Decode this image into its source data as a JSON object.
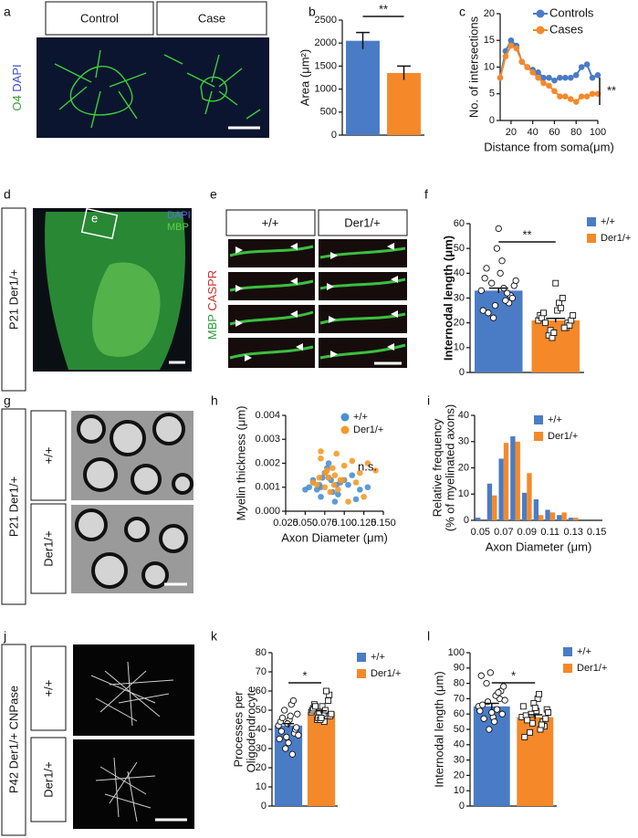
{
  "figure_panels": [
    {
      "letter": "a",
      "headers": [
        "Control",
        "Case"
      ],
      "stain": [
        "O4",
        "DAPI"
      ]
    },
    {
      "letter": "d",
      "side": "P21 Der1/+",
      "stain": [
        "DAPI",
        "MBP"
      ],
      "inset": "e"
    },
    {
      "letter": "e",
      "headers": [
        "+/+",
        "Der1/+"
      ],
      "stain": [
        "MBP",
        "CASPR"
      ]
    },
    {
      "letter": "g",
      "side": "P21 Der1/+",
      "headers": [
        "+/+",
        "Der1/+"
      ]
    },
    {
      "letter": "j",
      "side": "P42 Der1/+ CNPase",
      "headers": [
        "+/+",
        "Der1/+"
      ]
    }
  ],
  "chart_data": [
    {
      "panel": "b",
      "type": "bar",
      "categories": [
        null,
        null
      ],
      "values": [
        2050,
        1350
      ],
      "errors": [
        180,
        150
      ],
      "colors": [
        "#4a7cc6",
        "#f5892a"
      ],
      "ylabel": "Area (μm²)",
      "ylim": [
        0,
        2500
      ],
      "yticks": [
        0,
        500,
        1000,
        1500,
        2000,
        2500
      ],
      "annotation": "**"
    },
    {
      "panel": "c",
      "type": "line",
      "x": [
        10,
        15,
        20,
        25,
        30,
        35,
        40,
        45,
        50,
        55,
        60,
        65,
        70,
        75,
        80,
        85,
        90,
        95,
        100
      ],
      "series": [
        {
          "name": "Controls",
          "color": "#4a7cc6",
          "values": [
            8,
            13,
            15,
            14,
            11,
            10,
            9.5,
            9,
            8,
            8,
            7.5,
            8,
            8,
            8,
            8.5,
            10,
            10.5,
            8,
            8.5
          ]
        },
        {
          "name": "Cases",
          "color": "#f5892a",
          "values": [
            8,
            12,
            14,
            13.5,
            11,
            10,
            9,
            8,
            7,
            6.5,
            5.5,
            4.5,
            4.5,
            4,
            3.5,
            4.5,
            4.5,
            5,
            5
          ]
        }
      ],
      "xlabel": "Distance from soma(μm)",
      "ylabel": "No. of intersections",
      "xlim": [
        10,
        100
      ],
      "xticks": [
        20,
        40,
        60,
        80,
        100
      ],
      "ylim": [
        0,
        20
      ],
      "yticks": [
        0,
        5,
        10,
        15,
        20
      ],
      "legend": "top-right",
      "annotation": "**"
    },
    {
      "panel": "f",
      "type": "bar",
      "categories": [
        "+/+",
        "Der1/+"
      ],
      "values": [
        33,
        21
      ],
      "errors": [
        1,
        0.8
      ],
      "points": [
        [
          33,
          28,
          40,
          36,
          25,
          31,
          45,
          22,
          38,
          30,
          34,
          27,
          42,
          35,
          29,
          50,
          24,
          37,
          32,
          58
        ],
        [
          21,
          18,
          25,
          15,
          23,
          20,
          28,
          17,
          22,
          19,
          26,
          14,
          24,
          21,
          30,
          16,
          20,
          23,
          18,
          36
        ]
      ],
      "point_markers": [
        "circle",
        "square"
      ],
      "colors": [
        "#4a7cc6",
        "#f5892a"
      ],
      "ylabel": "Internodal length (μm)",
      "ylim": [
        0,
        60
      ],
      "yticks": [
        0,
        10,
        20,
        30,
        40,
        50,
        60
      ],
      "annotation": "**",
      "legend": "top-right"
    },
    {
      "panel": "h",
      "type": "scatter",
      "series": [
        {
          "name": "+/+",
          "color": "#4a90d0",
          "x": [
            0.06,
            0.07,
            0.08,
            0.065,
            0.09,
            0.075,
            0.1,
            0.085,
            0.055,
            0.11,
            0.07,
            0.095,
            0.08,
            0.12,
            0.06,
            0.088,
            0.105,
            0.072,
            0.13,
            0.078,
            0.092,
            0.068,
            0.115,
            0.083,
            0.05
          ],
          "values": [
            0.0012,
            0.001,
            0.0014,
            0.0009,
            0.0011,
            0.0016,
            0.0013,
            0.0008,
            0.001,
            0.0015,
            0.0006,
            0.0012,
            0.002,
            0.0009,
            0.0013,
            0.0004,
            0.0011,
            0.0014,
            0.001,
            0.0018,
            0.0007,
            0.0011,
            0.0005,
            0.0013,
            0.0009
          ]
        },
        {
          "name": "Der1/+",
          "color": "#f59a2a",
          "x": [
            0.07,
            0.085,
            0.095,
            0.065,
            0.1,
            0.08,
            0.11,
            0.075,
            0.09,
            0.12,
            0.06,
            0.105,
            0.088,
            0.13,
            0.078,
            0.092,
            0.115,
            0.07,
            0.082,
            0.098,
            0.14,
            0.068,
            0.087,
            0.125,
            0.076
          ],
          "values": [
            0.0025,
            0.0018,
            0.0013,
            0.0011,
            0.0019,
            0.0014,
            0.0021,
            0.001,
            0.0024,
            0.0016,
            0.0012,
            0.0004,
            0.0015,
            0.002,
            0.0017,
            0.0009,
            0.0012,
            0.0022,
            0.0008,
            0.0013,
            0.0017,
            0.0014,
            0.0011,
            0.0006,
            0.0016
          ]
        }
      ],
      "xlabel": "Axon Diameter (μm)",
      "ylabel": "Myelin thickness (μm)",
      "xlim": [
        0.025,
        0.15
      ],
      "xticks": [
        {
          "value": 0.025,
          "label": "0.025"
        },
        {
          "value": 0.05,
          "label": "0.050"
        },
        {
          "value": 0.075,
          "label": "0.075"
        },
        {
          "value": 0.1,
          "label": "0.100"
        },
        {
          "value": 0.125,
          "label": "0.125"
        },
        {
          "value": 0.15,
          "label": "0.150"
        }
      ],
      "ylim": [
        0,
        0.004
      ],
      "yticks": [
        {
          "value": 0,
          "label": "0.000"
        },
        {
          "value": 0.001,
          "label": "0.001"
        },
        {
          "value": 0.002,
          "label": "0.002"
        },
        {
          "value": 0.003,
          "label": "0.003"
        },
        {
          "value": 0.004,
          "label": "0.004"
        }
      ],
      "annotation": "n.s.",
      "legend": "top-right"
    },
    {
      "panel": "i",
      "type": "bar",
      "categories": [
        "0.05",
        null,
        "0.07",
        null,
        "0.09",
        null,
        "0.11",
        null,
        "0.13",
        null,
        "0.15"
      ],
      "series": [
        {
          "name": "+/+",
          "color": "#4a7cc6",
          "values": [
            1,
            14,
            23.5,
            32,
            10.5,
            8,
            4,
            2,
            1,
            0,
            0
          ]
        },
        {
          "name": "Der1/+",
          "color": "#f5892a",
          "values": [
            0,
            9.5,
            29.5,
            30,
            18,
            2,
            3,
            3,
            1,
            0,
            0
          ]
        }
      ],
      "xlabel": "Axon Diameter (μm)",
      "ylabel": [
        "Relative frequency",
        "(% of myelinated axons)"
      ],
      "ylim": [
        0,
        40
      ],
      "yticks": [
        0,
        10,
        20,
        30,
        40
      ],
      "legend": "top-right"
    },
    {
      "panel": "k",
      "type": "bar",
      "categories": [
        "+/+",
        "Der1/+"
      ],
      "values": [
        42,
        49
      ],
      "errors": [
        1,
        0.7
      ],
      "points": [
        [
          42,
          38,
          45,
          50,
          35,
          40,
          47,
          30,
          44,
          41,
          53,
          36,
          39,
          48,
          27,
          43,
          46,
          37,
          55,
          33
        ],
        [
          49,
          47,
          52,
          45,
          50,
          55,
          48,
          46,
          51,
          58,
          44,
          49,
          53,
          47,
          50,
          45,
          52,
          48,
          60,
          46
        ]
      ],
      "point_markers": [
        "circle",
        "square"
      ],
      "colors": [
        "#4a7cc6",
        "#f5892a"
      ],
      "ylabel": [
        "Processes per",
        "Oligodendrocyte"
      ],
      "ylim": [
        0,
        80
      ],
      "yticks": [
        0,
        10,
        20,
        30,
        40,
        50,
        60,
        70,
        80
      ],
      "annotation": "*",
      "legend": "top-right"
    },
    {
      "panel": "l",
      "type": "bar",
      "categories": [
        "+/+",
        "Der1/+"
      ],
      "values": [
        65,
        58
      ],
      "errors": [
        2,
        1.5
      ],
      "points": [
        [
          65,
          70,
          58,
          80,
          62,
          75,
          55,
          68,
          85,
          60,
          72,
          50,
          66,
          78,
          63,
          87,
          57,
          69,
          74,
          61
        ],
        [
          58,
          55,
          62,
          48,
          65,
          52,
          70,
          60,
          45,
          57,
          73,
          54,
          59,
          63,
          50,
          67,
          56,
          61,
          53,
          64
        ]
      ],
      "point_markers": [
        "circle",
        "square"
      ],
      "colors": [
        "#4a7cc6",
        "#f5892a"
      ],
      "ylabel": "Internodal length (μm)",
      "ylim": [
        0,
        100
      ],
      "yticks": [
        0,
        10,
        20,
        30,
        40,
        50,
        60,
        70,
        80,
        90,
        100
      ],
      "annotation": "*",
      "legend": "top-right"
    }
  ]
}
